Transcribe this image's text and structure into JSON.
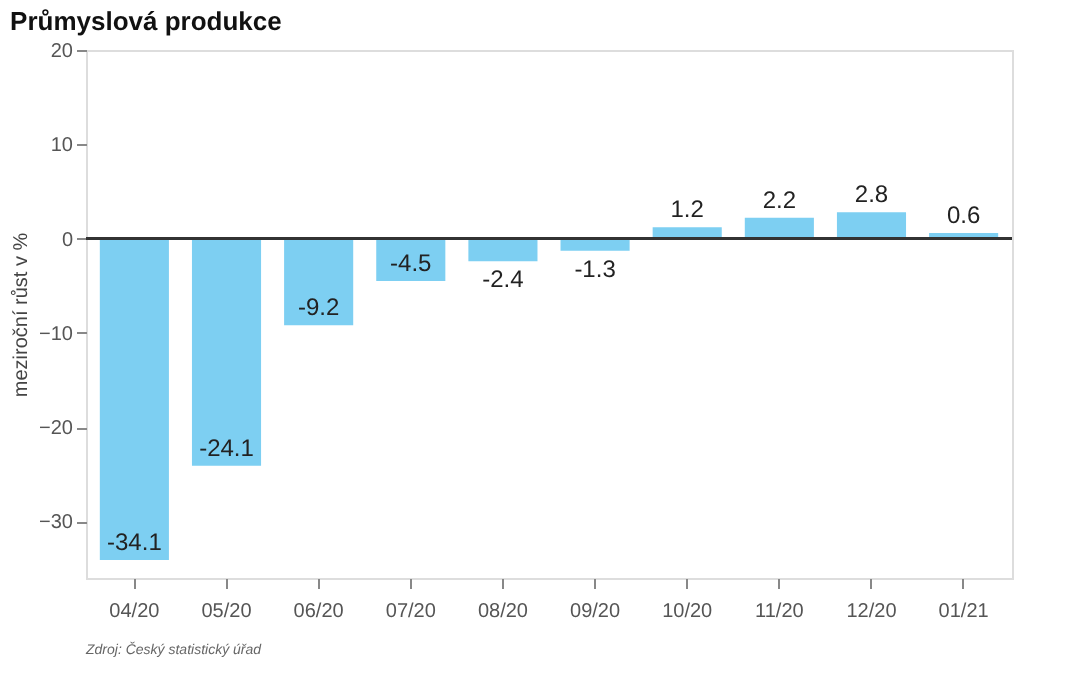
{
  "chart_data": {
    "type": "bar",
    "title": "Průmyslová produkce",
    "ylabel": "meziroční růst v %",
    "categories": [
      "04/20",
      "05/20",
      "06/20",
      "07/20",
      "08/20",
      "09/20",
      "10/20",
      "11/20",
      "12/20",
      "01/21"
    ],
    "values": [
      -34.1,
      -24.1,
      -9.2,
      -4.5,
      -2.4,
      -1.3,
      1.2,
      2.2,
      2.8,
      0.6
    ],
    "color": "#7dcff2",
    "data_labels": true,
    "ref_lines": [
      {
        "axis": "y",
        "value": 0,
        "color": "#333333"
      }
    ],
    "ylim": [
      -36,
      20
    ],
    "yticks": [
      -30,
      -20,
      -10,
      0,
      10,
      20
    ],
    "grid": false,
    "annotations": [
      "Zdroj: Český statistický úřad"
    ]
  }
}
